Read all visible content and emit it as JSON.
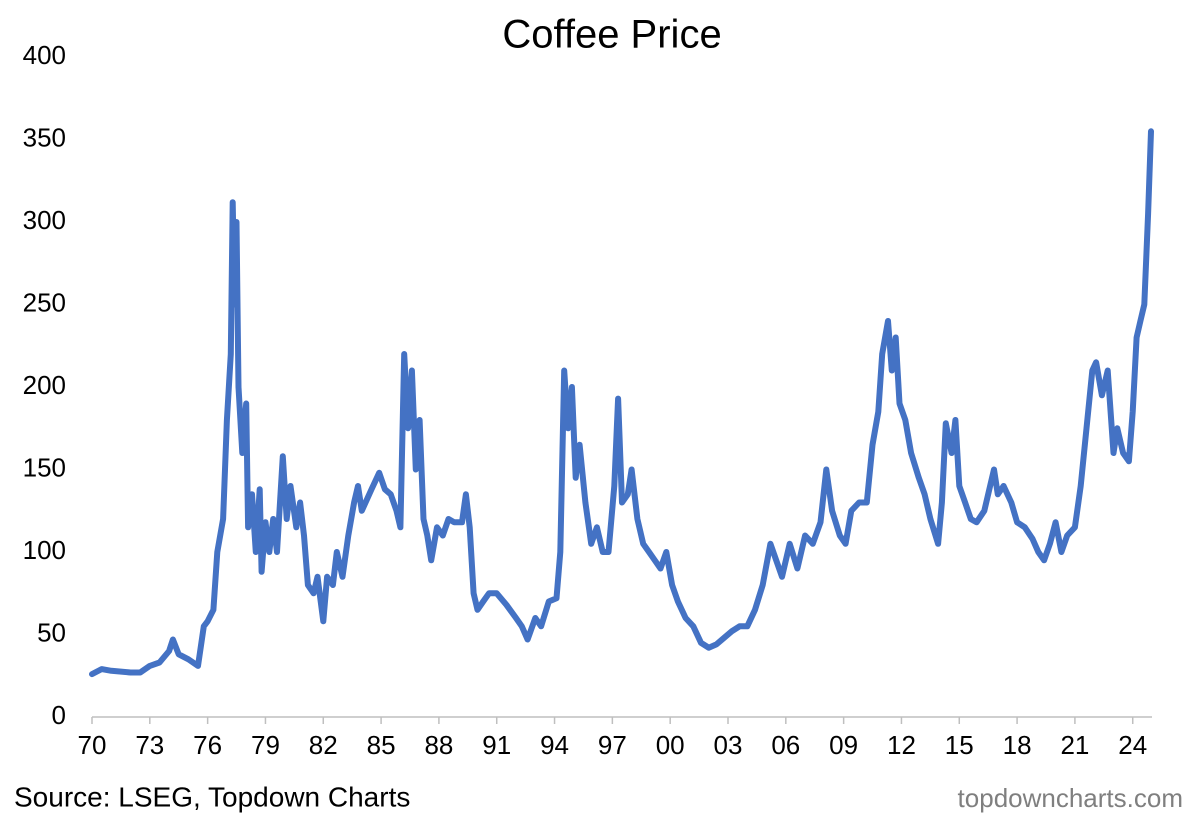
{
  "chart_data": {
    "type": "line",
    "title": "Coffee Price",
    "source": "Source: LSEG, Topdown Charts",
    "watermark": "topdowncharts.com",
    "color": "#4472c4",
    "xlim": [
      1970,
      2025
    ],
    "ylim": [
      0,
      400
    ],
    "yticks": [
      0,
      50,
      100,
      150,
      200,
      250,
      300,
      350,
      400
    ],
    "xticks": [
      {
        "value": 1970,
        "label": "70"
      },
      {
        "value": 1973,
        "label": "73"
      },
      {
        "value": 1976,
        "label": "76"
      },
      {
        "value": 1979,
        "label": "79"
      },
      {
        "value": 1982,
        "label": "82"
      },
      {
        "value": 1985,
        "label": "85"
      },
      {
        "value": 1988,
        "label": "88"
      },
      {
        "value": 1991,
        "label": "91"
      },
      {
        "value": 1994,
        "label": "94"
      },
      {
        "value": 1997,
        "label": "97"
      },
      {
        "value": 2000,
        "label": "00"
      },
      {
        "value": 2003,
        "label": "03"
      },
      {
        "value": 2006,
        "label": "06"
      },
      {
        "value": 2009,
        "label": "09"
      },
      {
        "value": 2012,
        "label": "12"
      },
      {
        "value": 2015,
        "label": "15"
      },
      {
        "value": 2018,
        "label": "18"
      },
      {
        "value": 2021,
        "label": "21"
      },
      {
        "value": 2024,
        "label": "24"
      }
    ],
    "x": [
      1970,
      1970.5,
      1971,
      1972,
      1972.5,
      1973,
      1973.5,
      1974,
      1974.2,
      1974.5,
      1975,
      1975.5,
      1975.8,
      1976,
      1976.3,
      1976.5,
      1976.8,
      1977,
      1977.2,
      1977.3,
      1977.4,
      1977.5,
      1977.6,
      1977.8,
      1978,
      1978.1,
      1978.3,
      1978.5,
      1978.7,
      1978.8,
      1979,
      1979.2,
      1979.4,
      1979.6,
      1979.9,
      1980.1,
      1980.3,
      1980.6,
      1980.8,
      1981,
      1981.2,
      1981.5,
      1981.7,
      1982,
      1982.2,
      1982.5,
      1982.7,
      1983,
      1983.3,
      1983.6,
      1983.8,
      1984,
      1984.5,
      1984.9,
      1985.2,
      1985.5,
      1985.8,
      1986,
      1986.2,
      1986.4,
      1986.6,
      1986.8,
      1987,
      1987.2,
      1987.4,
      1987.6,
      1987.9,
      1988.2,
      1988.5,
      1988.8,
      1989.2,
      1989.4,
      1989.6,
      1989.8,
      1990,
      1990.3,
      1990.6,
      1991,
      1991.5,
      1992,
      1992.3,
      1992.6,
      1993,
      1993.3,
      1993.7,
      1994.1,
      1994.3,
      1994.5,
      1994.7,
      1994.9,
      1995.1,
      1995.3,
      1995.6,
      1995.9,
      1996.2,
      1996.5,
      1996.8,
      1997.1,
      1997.3,
      1997.5,
      1997.8,
      1998,
      1998.3,
      1998.6,
      1998.9,
      1999.2,
      1999.5,
      1999.8,
      2000.1,
      2000.4,
      2000.8,
      2001.2,
      2001.6,
      2002,
      2002.4,
      2002.8,
      2003.2,
      2003.6,
      2004,
      2004.4,
      2004.8,
      2005.2,
      2005.5,
      2005.8,
      2006.2,
      2006.6,
      2007,
      2007.4,
      2007.8,
      2008.1,
      2008.4,
      2008.8,
      2009.1,
      2009.4,
      2009.8,
      2010.2,
      2010.5,
      2010.8,
      2011,
      2011.3,
      2011.5,
      2011.7,
      2011.9,
      2012.2,
      2012.5,
      2012.9,
      2013.2,
      2013.5,
      2013.9,
      2014.1,
      2014.3,
      2014.6,
      2014.8,
      2015,
      2015.3,
      2015.6,
      2015.9,
      2016.3,
      2016.6,
      2016.8,
      2017,
      2017.3,
      2017.7,
      2018,
      2018.4,
      2018.8,
      2019.1,
      2019.4,
      2019.7,
      2020,
      2020.3,
      2020.6,
      2021,
      2021.3,
      2021.6,
      2021.9,
      2022.1,
      2022.4,
      2022.7,
      2023,
      2023.2,
      2023.5,
      2023.8,
      2024,
      2024.2,
      2024.4,
      2024.6,
      2024.8,
      2024.95
    ],
    "values": [
      26,
      29,
      28,
      27,
      27,
      31,
      33,
      40,
      47,
      38,
      35,
      31,
      55,
      58,
      65,
      100,
      120,
      180,
      220,
      312,
      250,
      300,
      200,
      160,
      190,
      115,
      135,
      100,
      138,
      88,
      118,
      100,
      120,
      100,
      158,
      120,
      140,
      115,
      130,
      110,
      80,
      75,
      85,
      58,
      85,
      80,
      100,
      85,
      110,
      130,
      140,
      125,
      138,
      148,
      138,
      135,
      125,
      115,
      220,
      175,
      210,
      150,
      180,
      120,
      110,
      95,
      115,
      110,
      120,
      118,
      118,
      135,
      115,
      75,
      65,
      70,
      75,
      75,
      68,
      60,
      55,
      47,
      60,
      55,
      70,
      72,
      100,
      210,
      175,
      200,
      145,
      165,
      130,
      105,
      115,
      100,
      100,
      140,
      193,
      130,
      135,
      150,
      120,
      105,
      100,
      95,
      90,
      100,
      80,
      70,
      60,
      55,
      45,
      42,
      44,
      48,
      52,
      55,
      55,
      65,
      80,
      105,
      95,
      85,
      105,
      90,
      110,
      105,
      118,
      150,
      125,
      110,
      105,
      125,
      130,
      130,
      165,
      185,
      220,
      240,
      210,
      230,
      190,
      180,
      160,
      145,
      135,
      120,
      105,
      130,
      178,
      160,
      180,
      140,
      130,
      120,
      118,
      125,
      140,
      150,
      135,
      140,
      130,
      118,
      115,
      108,
      100,
      95,
      105,
      118,
      100,
      110,
      115,
      140,
      175,
      210,
      215,
      195,
      210,
      160,
      175,
      160,
      155,
      185,
      230,
      240,
      250,
      305,
      355
    ]
  }
}
